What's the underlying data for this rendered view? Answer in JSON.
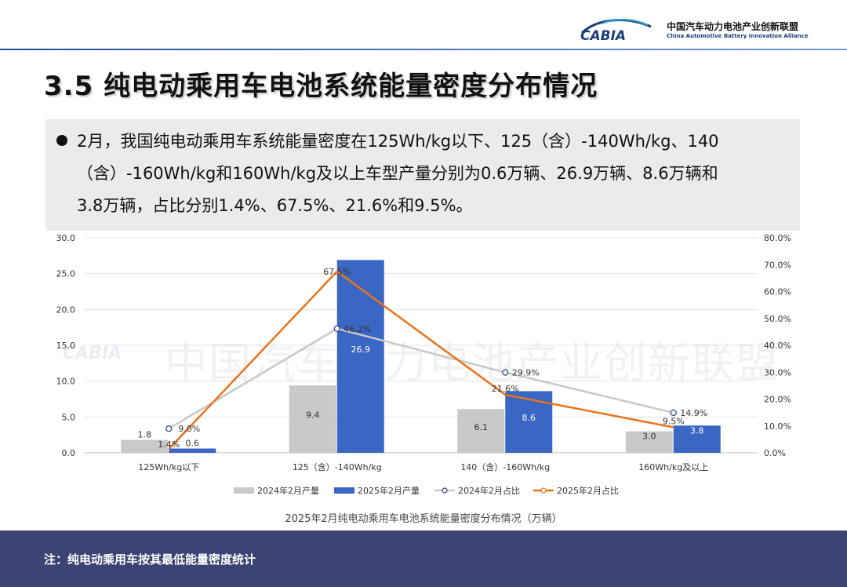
{
  "logo": {
    "mark": "CABIA",
    "cn_name": "中国汽车动力电池产业创新联盟",
    "en_name": "China Automotive Battery Innovation Alliance"
  },
  "page": {
    "title": "3.5 纯电动乘用车电池系统能量密度分布情况",
    "bullet_lines": [
      "2月，我国纯电动乘用车系统能量密度在125Wh/kg以下、125（含）-140Wh/kg、140",
      "（含）-160Wh/kg和160Wh/kg及以上车型产量分别为0.6万辆、26.9万辆、8.6万辆和",
      "3.8万辆，占比分别1.4%、67.5%、21.6%和9.5%。"
    ],
    "watermark": "中国汽车动力电池产业创新联盟",
    "caption": "2025年2月纯电动乘用车电池系统能量密度分布情况（万辆）",
    "footer_note": "注：纯电动乘用车按其最低能量密度统计"
  },
  "colors": {
    "bar_2024": "#c9c9c9",
    "bar_2025": "#3a66c4",
    "line_2024": "#c8c8c8",
    "line_2025": "#e8731a",
    "footer": "#3a4372"
  },
  "chart_data": {
    "type": "bar",
    "categories": [
      "125Wh/kg以下",
      "125（含）-140Wh/kg",
      "140（含）-160Wh/kg",
      "160Wh/kg及以上"
    ],
    "series": [
      {
        "name": "2024年2月产量",
        "kind": "bar",
        "axis": "left",
        "values": [
          1.8,
          9.4,
          6.1,
          3.0
        ],
        "labels": [
          "1.8",
          "9.4",
          "6.1",
          "3.0"
        ]
      },
      {
        "name": "2025年2月产量",
        "kind": "bar",
        "axis": "left",
        "values": [
          0.6,
          26.9,
          8.6,
          3.8
        ],
        "labels": [
          "0.6",
          "26.9",
          "8.6",
          "3.8"
        ]
      },
      {
        "name": "2024年2月占比",
        "kind": "line",
        "axis": "right",
        "values": [
          9.0,
          46.2,
          29.9,
          14.9
        ],
        "labels": [
          "9.0%",
          "46.2%",
          "29.9%",
          "14.9%"
        ]
      },
      {
        "name": "2025年2月占比",
        "kind": "line",
        "axis": "right",
        "values": [
          1.4,
          67.5,
          21.6,
          9.5
        ],
        "labels": [
          "1.4%",
          "67.5%",
          "21.6%",
          "9.5%"
        ]
      }
    ],
    "ylim": [
      0,
      30
    ],
    "yticks": [
      "0.0",
      "5.0",
      "10.0",
      "15.0",
      "20.0",
      "25.0",
      "30.0"
    ],
    "y2lim": [
      0,
      80
    ],
    "y2ticks": [
      "0.0%",
      "10.0%",
      "20.0%",
      "30.0%",
      "40.0%",
      "50.0%",
      "60.0%",
      "70.0%",
      "80.0%"
    ],
    "grid": true,
    "legend_position": "bottom"
  }
}
